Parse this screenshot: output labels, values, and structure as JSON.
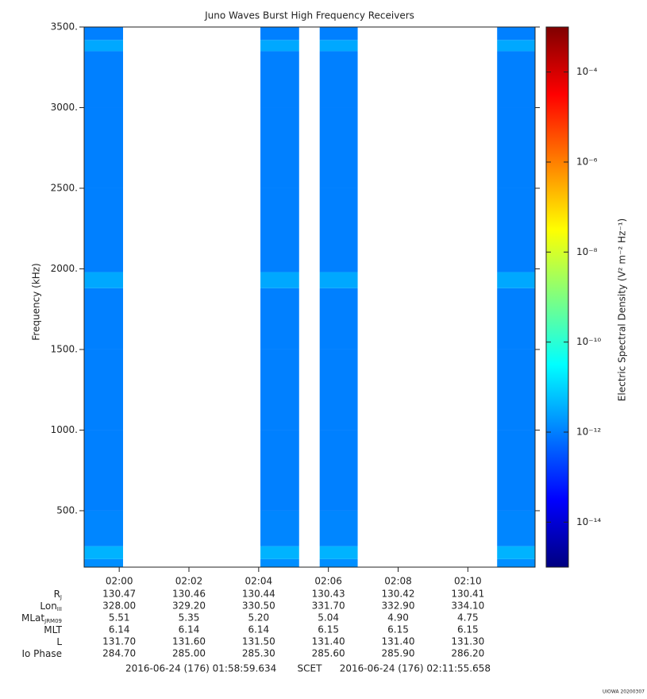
{
  "chart_data": {
    "type": "heatmap",
    "title": "Juno Waves Burst High Frequency Receivers",
    "ylabel": "Frequency (kHz)",
    "colorbar_label": "Electric Spectral Density (V² m⁻² Hz⁻¹)",
    "ylim": [
      150,
      3500
    ],
    "yticks": [
      {
        "value": 500,
        "label": "500."
      },
      {
        "value": 1000,
        "label": "1000."
      },
      {
        "value": 1500,
        "label": "1500."
      },
      {
        "value": 2000,
        "label": "2000."
      },
      {
        "value": 2500,
        "label": "2500."
      },
      {
        "value": 3000,
        "label": "3000."
      },
      {
        "value": 3500,
        "label": "3500."
      }
    ],
    "xlim": [
      118.994,
      131.928
    ],
    "xticks": [
      {
        "value": 120,
        "label": "02:00"
      },
      {
        "value": 122,
        "label": "02:02"
      },
      {
        "value": 124,
        "label": "02:04"
      },
      {
        "value": 126,
        "label": "02:06"
      },
      {
        "value": 128,
        "label": "02:08"
      },
      {
        "value": 130,
        "label": "02:10"
      }
    ],
    "clim": [
      1e-15,
      0.001
    ],
    "cticks": [
      {
        "value": 0.0001,
        "label": "10⁻⁴"
      },
      {
        "value": 1e-06,
        "label": "10⁻⁶"
      },
      {
        "value": 1e-08,
        "label": "10⁻⁸"
      },
      {
        "value": 1e-10,
        "label": "10⁻¹⁰"
      },
      {
        "value": 1e-12,
        "label": "10⁻¹²"
      },
      {
        "value": 1e-14,
        "label": "10⁻¹⁴"
      }
    ],
    "log_color": true,
    "freq_bins": [
      150,
      200,
      280,
      500,
      1000,
      1500,
      1880,
      1980,
      2500,
      3000,
      3350,
      3420,
      3500
    ],
    "segments": [
      {
        "start": 118.994,
        "end": 120.11,
        "values": [
          1.5e-12,
          4e-12,
          1.2e-12,
          1e-12,
          1e-12,
          1e-12,
          3e-12,
          1e-12,
          1e-12,
          1e-12,
          3e-12,
          1e-12
        ]
      },
      {
        "start": 124.05,
        "end": 125.16,
        "values": [
          1.5e-12,
          4e-12,
          1.2e-12,
          1e-12,
          1e-12,
          1e-12,
          3e-12,
          1e-12,
          1e-12,
          1e-12,
          3e-12,
          1e-12
        ]
      },
      {
        "start": 125.75,
        "end": 126.84,
        "values": [
          1.5e-12,
          4e-12,
          1.2e-12,
          1e-12,
          1e-12,
          1e-12,
          3e-12,
          1e-12,
          1e-12,
          1e-12,
          3e-12,
          1e-12
        ]
      },
      {
        "start": 130.84,
        "end": 131.928,
        "values": [
          1.5e-12,
          4e-12,
          1.2e-12,
          1e-12,
          1e-12,
          1e-12,
          3e-12,
          1e-12,
          1e-12,
          1e-12,
          3e-12,
          1e-12
        ]
      }
    ],
    "ephemeris": [
      {
        "name": "R",
        "sub": "J",
        "values": [
          "130.47",
          "130.46",
          "130.44",
          "130.43",
          "130.42",
          "130.41"
        ]
      },
      {
        "name": "Lon",
        "sub": "III",
        "values": [
          "328.00",
          "329.20",
          "330.50",
          "331.70",
          "332.90",
          "334.10"
        ]
      },
      {
        "name": "MLat",
        "sub": "JRM09",
        "values": [
          "5.51",
          "5.35",
          "5.20",
          "5.04",
          "4.90",
          "4.75"
        ]
      },
      {
        "name": "MLT",
        "values": [
          "6.14",
          "6.14",
          "6.14",
          "6.15",
          "6.15",
          "6.15"
        ]
      },
      {
        "name": "L",
        "values": [
          "131.70",
          "131.60",
          "131.50",
          "131.40",
          "131.40",
          "131.30"
        ]
      },
      {
        "name": "Io Phase",
        "values": [
          "284.70",
          "285.00",
          "285.30",
          "285.60",
          "285.90",
          "286.20"
        ]
      }
    ],
    "start_time": "2016-06-24 (176) 01:58:59.634",
    "time_system": "SCET",
    "end_time": "2016-06-24 (176) 02:11:55.658",
    "credit": "UIOWA 20200307"
  }
}
